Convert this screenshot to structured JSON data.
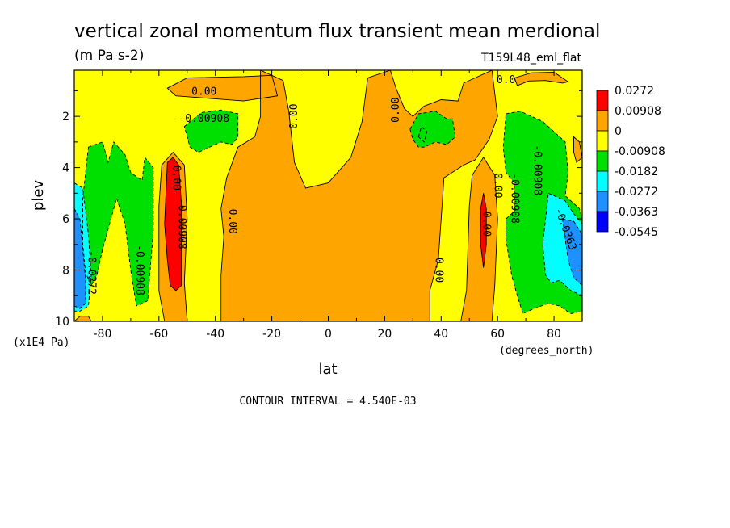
{
  "title": "vertical zonal momentum flux transient mean merdional",
  "units": "(m Pa s-2)",
  "run_label": "T159L48_eml_flat",
  "contour_interval_text": "CONTOUR INTERVAL = 4.540E-03",
  "colors": {
    "r": "#ff0000",
    "o": "#ffa500",
    "y": "#ffff00",
    "g": "#00e000",
    "c": "#00ffff",
    "b": "#1e90ff",
    "db": "#0000ff"
  },
  "chart_data": {
    "type": "heatmap",
    "title": "vertical zonal momentum flux transient mean merdional",
    "xlabel": "lat",
    "x_units": "(degrees_north)",
    "ylabel": "plev",
    "y_units": "(x1E4 Pa)",
    "xlim": [
      -90,
      90
    ],
    "ylim": [
      0.2,
      10
    ],
    "x_ticks": [
      -80,
      -60,
      -40,
      -20,
      0,
      20,
      40,
      60,
      80
    ],
    "y_ticks": [
      2,
      4,
      6,
      8,
      10
    ],
    "legend": {
      "placement": "right",
      "levels": [
        {
          "label": "0.0272",
          "color": "r"
        },
        {
          "label": "0.00908",
          "color": "o"
        },
        {
          "label": "0",
          "color": "y"
        },
        {
          "label": "-0.00908",
          "color": "g"
        },
        {
          "label": "-0.0182",
          "color": "c"
        },
        {
          "label": "-0.0272",
          "color": "b"
        },
        {
          "label": "-0.0363",
          "color": "db"
        },
        {
          "label": "-0.0545",
          "color": "db"
        }
      ]
    },
    "regions": [
      {
        "color": "o",
        "pts": [
          [
            -57,
            0.9
          ],
          [
            -50,
            0.5
          ],
          [
            -30,
            0.45
          ],
          [
            -20,
            0.4
          ],
          [
            -18,
            1.2
          ],
          [
            -30,
            1.4
          ],
          [
            -42,
            1.3
          ],
          [
            -54,
            1.2
          ]
        ]
      },
      {
        "color": "o",
        "pts": [
          [
            -24,
            0.2
          ],
          [
            -16,
            0.6
          ],
          [
            -14,
            1.8
          ],
          [
            -12,
            3.8
          ],
          [
            -8,
            4.8
          ],
          [
            0,
            4.6
          ],
          [
            8,
            3.6
          ],
          [
            12,
            2.2
          ],
          [
            14,
            0.5
          ],
          [
            22,
            0.2
          ],
          [
            24,
            0.9
          ],
          [
            27,
            1.7
          ],
          [
            30,
            2.0
          ],
          [
            34,
            1.6
          ],
          [
            40,
            1.35
          ],
          [
            46,
            1.4
          ],
          [
            48,
            0.7
          ],
          [
            58,
            0.2
          ],
          [
            60,
            2.0
          ],
          [
            57,
            2.9
          ],
          [
            52,
            3.7
          ],
          [
            48,
            3.9
          ],
          [
            41,
            4.4
          ],
          [
            39,
            7.6
          ],
          [
            36,
            8.8
          ],
          [
            36,
            10
          ],
          [
            -38,
            10
          ],
          [
            -38,
            8.2
          ],
          [
            -37,
            6.7
          ],
          [
            -38,
            5.6
          ],
          [
            -36,
            4.4
          ],
          [
            -32,
            3.2
          ],
          [
            -26,
            2.8
          ],
          [
            -24,
            2.0
          ]
        ]
      },
      {
        "color": "o",
        "pts": [
          [
            -58,
            10
          ],
          [
            -60,
            8.8
          ],
          [
            -60,
            5.5
          ],
          [
            -59,
            3.9
          ],
          [
            -55,
            3.4
          ],
          [
            -51,
            3.9
          ],
          [
            -50,
            6.0
          ],
          [
            -51,
            8.5
          ],
          [
            -50,
            10
          ]
        ]
      },
      {
        "color": "o",
        "pts": [
          [
            47,
            10
          ],
          [
            49,
            8.8
          ],
          [
            50,
            5.5
          ],
          [
            51,
            4.3
          ],
          [
            55,
            3.6
          ],
          [
            59,
            4.3
          ],
          [
            60,
            6.0
          ],
          [
            59,
            8.6
          ],
          [
            58,
            10
          ]
        ]
      },
      {
        "color": "o",
        "pts": [
          [
            -90,
            10
          ],
          [
            -88,
            9.8
          ],
          [
            -85,
            9.8
          ],
          [
            -84,
            10
          ]
        ]
      },
      {
        "color": "o",
        "pts": [
          [
            66,
            0.5
          ],
          [
            72,
            0.3
          ],
          [
            80,
            0.28
          ],
          [
            85,
            0.65
          ],
          [
            83,
            0.7
          ],
          [
            77,
            0.6
          ],
          [
            71,
            0.62
          ],
          [
            67,
            0.8
          ]
        ]
      },
      {
        "color": "o",
        "pts": [
          [
            87,
            2.8
          ],
          [
            89,
            3.0
          ],
          [
            90,
            3.6
          ],
          [
            88,
            3.8
          ],
          [
            87,
            3.4
          ]
        ]
      },
      {
        "color": "r",
        "pts": [
          [
            -58,
            6.2
          ],
          [
            -57,
            3.8
          ],
          [
            -55,
            3.6
          ],
          [
            -53,
            3.9
          ],
          [
            -52,
            5.5
          ],
          [
            -52,
            8.6
          ],
          [
            -54,
            8.8
          ],
          [
            -56,
            8.6
          ],
          [
            -57,
            7.6
          ]
        ]
      },
      {
        "color": "r",
        "pts": [
          [
            55,
            7.9
          ],
          [
            54,
            7.0
          ],
          [
            54,
            5.6
          ],
          [
            55,
            5.0
          ],
          [
            56,
            5.6
          ],
          [
            56,
            7.0
          ]
        ]
      },
      {
        "color": "g",
        "pts": [
          [
            -51,
            2.4
          ],
          [
            -45,
            1.85
          ],
          [
            -38,
            1.75
          ],
          [
            -32,
            1.9
          ],
          [
            -32,
            2.8
          ],
          [
            -34,
            3.1
          ],
          [
            -38,
            3.0
          ],
          [
            -42,
            3.2
          ],
          [
            -46,
            3.4
          ],
          [
            -49,
            3.2
          ]
        ]
      },
      {
        "color": "g",
        "pts": [
          [
            -85,
            3.2
          ],
          [
            -80,
            3.0
          ],
          [
            -78,
            3.8
          ],
          [
            -76,
            3.0
          ],
          [
            -72,
            3.5
          ],
          [
            -70,
            4.2
          ],
          [
            -66,
            4.5
          ],
          [
            -65,
            3.6
          ],
          [
            -62,
            4.0
          ],
          [
            -62,
            6.5
          ],
          [
            -64,
            9.2
          ],
          [
            -68,
            9.4
          ],
          [
            -70,
            8.0
          ],
          [
            -72,
            6.2
          ],
          [
            -75,
            5.2
          ],
          [
            -80,
            7.2
          ],
          [
            -82,
            8.2
          ],
          [
            -84,
            8.6
          ],
          [
            -86,
            8.1
          ],
          [
            -87,
            7.0
          ],
          [
            -87,
            5.2
          ]
        ]
      },
      {
        "color": "g",
        "pts": [
          [
            29,
            2.5
          ],
          [
            32,
            1.9
          ],
          [
            38,
            1.8
          ],
          [
            42,
            2.1
          ],
          [
            44,
            2.1
          ],
          [
            45,
            2.8
          ],
          [
            42,
            3.1
          ],
          [
            38,
            3.0
          ],
          [
            34,
            3.2
          ],
          [
            32,
            3.2
          ],
          [
            30,
            2.9
          ]
        ]
      },
      {
        "color": "g",
        "pts": [
          [
            63,
            1.9
          ],
          [
            68,
            1.8
          ],
          [
            72,
            2.0
          ],
          [
            76,
            2.2
          ],
          [
            80,
            2.6
          ],
          [
            84,
            3.0
          ],
          [
            85,
            4.2
          ],
          [
            84,
            5.1
          ],
          [
            89,
            5.6
          ],
          [
            90,
            6.0
          ],
          [
            90,
            9.6
          ],
          [
            86,
            9.7
          ],
          [
            82,
            9.4
          ],
          [
            78,
            9.3
          ],
          [
            73,
            9.5
          ],
          [
            69,
            9.7
          ],
          [
            67,
            9.0
          ],
          [
            65,
            8.2
          ],
          [
            63,
            6.8
          ],
          [
            63,
            6.0
          ],
          [
            66,
            5.7
          ],
          [
            66,
            4.6
          ],
          [
            63,
            4.2
          ],
          [
            62,
            3.2
          ]
        ]
      },
      {
        "color": "g",
        "pts": [
          [
            32,
            2.8
          ],
          [
            33,
            2.4
          ],
          [
            35,
            2.6
          ],
          [
            34,
            3.0
          ]
        ]
      },
      {
        "color": "c",
        "pts": [
          [
            -90,
            4.6
          ],
          [
            -87,
            4.8
          ],
          [
            -85,
            6.6
          ],
          [
            -84,
            8.2
          ],
          [
            -85,
            9.4
          ],
          [
            -88,
            9.6
          ],
          [
            -90,
            9.6
          ]
        ]
      },
      {
        "color": "c",
        "pts": [
          [
            78,
            5.0
          ],
          [
            84,
            5.3
          ],
          [
            87,
            5.8
          ],
          [
            90,
            6.2
          ],
          [
            90,
            9.0
          ],
          [
            86,
            8.8
          ],
          [
            82,
            8.4
          ],
          [
            79,
            8.5
          ],
          [
            77,
            8.2
          ],
          [
            76,
            7.0
          ]
        ]
      },
      {
        "color": "b",
        "pts": [
          [
            -90,
            5.6
          ],
          [
            -88,
            6.0
          ],
          [
            -87,
            7.2
          ],
          [
            -86,
            8.4
          ],
          [
            -86,
            9.3
          ],
          [
            -88,
            9.5
          ],
          [
            -90,
            9.4
          ]
        ]
      },
      {
        "color": "b",
        "pts": [
          [
            83,
            6.0
          ],
          [
            87,
            6.1
          ],
          [
            90,
            6.6
          ],
          [
            90,
            8.6
          ],
          [
            87,
            8.3
          ],
          [
            85,
            7.6
          ],
          [
            84,
            6.8
          ]
        ]
      }
    ],
    "contour_labels": [
      {
        "text": "0.00",
        "lat": -44,
        "plev": 1.05,
        "angle": 0
      },
      {
        "text": "-0.00908",
        "lat": -44,
        "plev": 2.1,
        "angle": 0
      },
      {
        "text": "0.00",
        "lat": -12,
        "plev": 2.0,
        "angle": -90
      },
      {
        "text": "0.00",
        "lat": 24,
        "plev": 1.75,
        "angle": -90
      },
      {
        "text": "0.00",
        "lat": -54,
        "plev": 4.4,
        "angle": 90
      },
      {
        "text": "-0.00908",
        "lat": -52,
        "plev": 6.2,
        "angle": 90
      },
      {
        "text": "0.00",
        "lat": -34,
        "plev": 6.1,
        "angle": 90
      },
      {
        "text": "0.00",
        "lat": 39,
        "plev": 8.0,
        "angle": 90
      },
      {
        "text": "-0.00908",
        "lat": -67,
        "plev": 8.0,
        "angle": 90
      },
      {
        "text": "-0.0272",
        "lat": -84,
        "plev": 8.1,
        "angle": 90
      },
      {
        "text": "0.00",
        "lat": 60,
        "plev": 4.7,
        "angle": 90
      },
      {
        "text": "0.00",
        "lat": 56,
        "plev": 6.2,
        "angle": 90
      },
      {
        "text": "-0.00908",
        "lat": 66,
        "plev": 5.2,
        "angle": 90
      },
      {
        "text": "-0.00908",
        "lat": 74,
        "plev": 4.1,
        "angle": 90
      },
      {
        "text": "-0.0363",
        "lat": 84,
        "plev": 6.4,
        "angle": 70
      },
      {
        "text": "0.0",
        "lat": 63,
        "plev": 0.6,
        "angle": 0
      }
    ]
  }
}
